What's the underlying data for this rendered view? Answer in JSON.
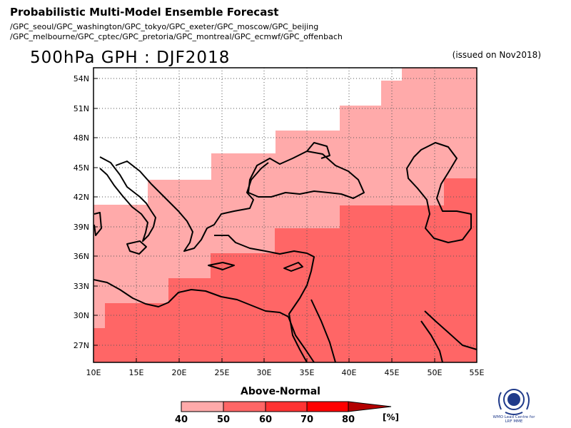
{
  "header": {
    "title": "Probabilistic Multi-Model Ensemble Forecast",
    "models_line1": "/GPC_seoul/GPC_washington/GPC_tokyo/GPC_exeter/GPC_moscow/GPC_beijing",
    "models_line2": "/GPC_melbourne/GPC_cptec/GPC_pretoria/GPC_montreal/GPC_ecmwf/GPC_offenbach"
  },
  "map": {
    "title": "500hPa GPH : DJF2018",
    "issued": "(issued on Nov2018)",
    "lat_labels": [
      "54N",
      "51N",
      "48N",
      "45N",
      "42N",
      "39N",
      "36N",
      "33N",
      "30N",
      "27N"
    ],
    "lon_labels": [
      "10E",
      "15E",
      "20E",
      "25E",
      "30E",
      "35E",
      "40E",
      "45E",
      "50E",
      "55E"
    ]
  },
  "legend": {
    "title": "Above-Normal",
    "ticks": [
      "40",
      "50",
      "60",
      "70",
      "80"
    ],
    "unit": "[%]",
    "colors": [
      "#ffaaaa",
      "#ff6666",
      "#ff3333",
      "#ff0000",
      "#b30000"
    ]
  },
  "logo": {
    "line1": "WMO Lead Centre for",
    "line2": "LRF MME"
  }
}
